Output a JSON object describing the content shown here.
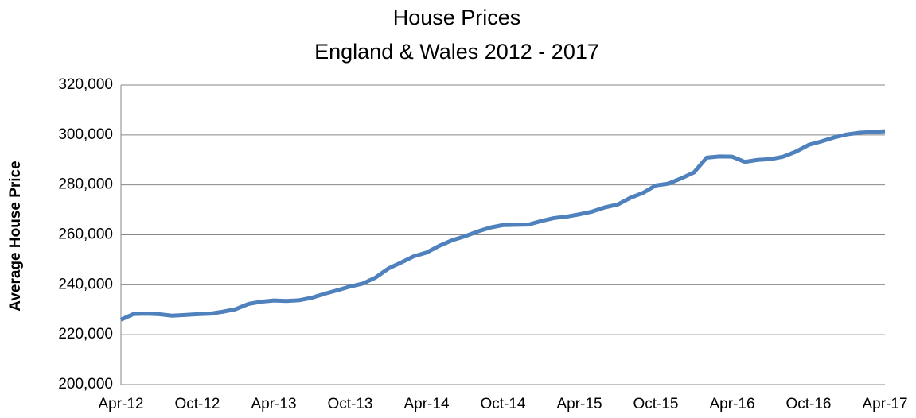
{
  "chart_data": {
    "type": "line",
    "title": "House Prices",
    "subtitle": "England & Wales 2012 - 2017",
    "y_label": "Average House Price",
    "categories": [
      "Apr-12",
      null,
      null,
      null,
      null,
      null,
      "Oct-12",
      null,
      null,
      null,
      null,
      null,
      "Apr-13",
      null,
      null,
      null,
      null,
      null,
      "Oct-13",
      null,
      null,
      null,
      null,
      null,
      "Apr-14",
      null,
      null,
      null,
      null,
      null,
      "Oct-14",
      null,
      null,
      null,
      null,
      null,
      "Apr-15",
      null,
      null,
      null,
      null,
      null,
      "Oct-15",
      null,
      null,
      null,
      null,
      null,
      "Apr-16",
      null,
      null,
      null,
      null,
      null,
      "Oct-16",
      null,
      null,
      null,
      null,
      null,
      "Apr-17"
    ],
    "values": [
      226000,
      228300,
      228400,
      228200,
      227600,
      227900,
      228200,
      228400,
      229200,
      230200,
      232300,
      233200,
      233700,
      233500,
      233800,
      234800,
      236400,
      237800,
      239300,
      240500,
      242900,
      246500,
      248900,
      251400,
      252900,
      255600,
      257800,
      259400,
      261300,
      262900,
      263900,
      264000,
      264100,
      265500,
      266700,
      267300,
      268200,
      269300,
      271000,
      272100,
      274800,
      276800,
      279800,
      280500,
      282600,
      285000,
      290900,
      291400,
      291300,
      289200,
      290000,
      290300,
      291300,
      293300,
      296000,
      297400,
      299000,
      300200,
      300900,
      301200,
      301500
    ],
    "color": "#4f81bd",
    "ylim": [
      200000,
      320000
    ],
    "yticks": [
      {
        "value": 200000,
        "label": "200,000"
      },
      {
        "value": 220000,
        "label": "220,000"
      },
      {
        "value": 240000,
        "label": "240,000"
      },
      {
        "value": 260000,
        "label": "260,000"
      },
      {
        "value": 280000,
        "label": "280,000"
      },
      {
        "value": 300000,
        "label": "300,000"
      },
      {
        "value": 320000,
        "label": "320,000"
      }
    ],
    "grid": true
  }
}
